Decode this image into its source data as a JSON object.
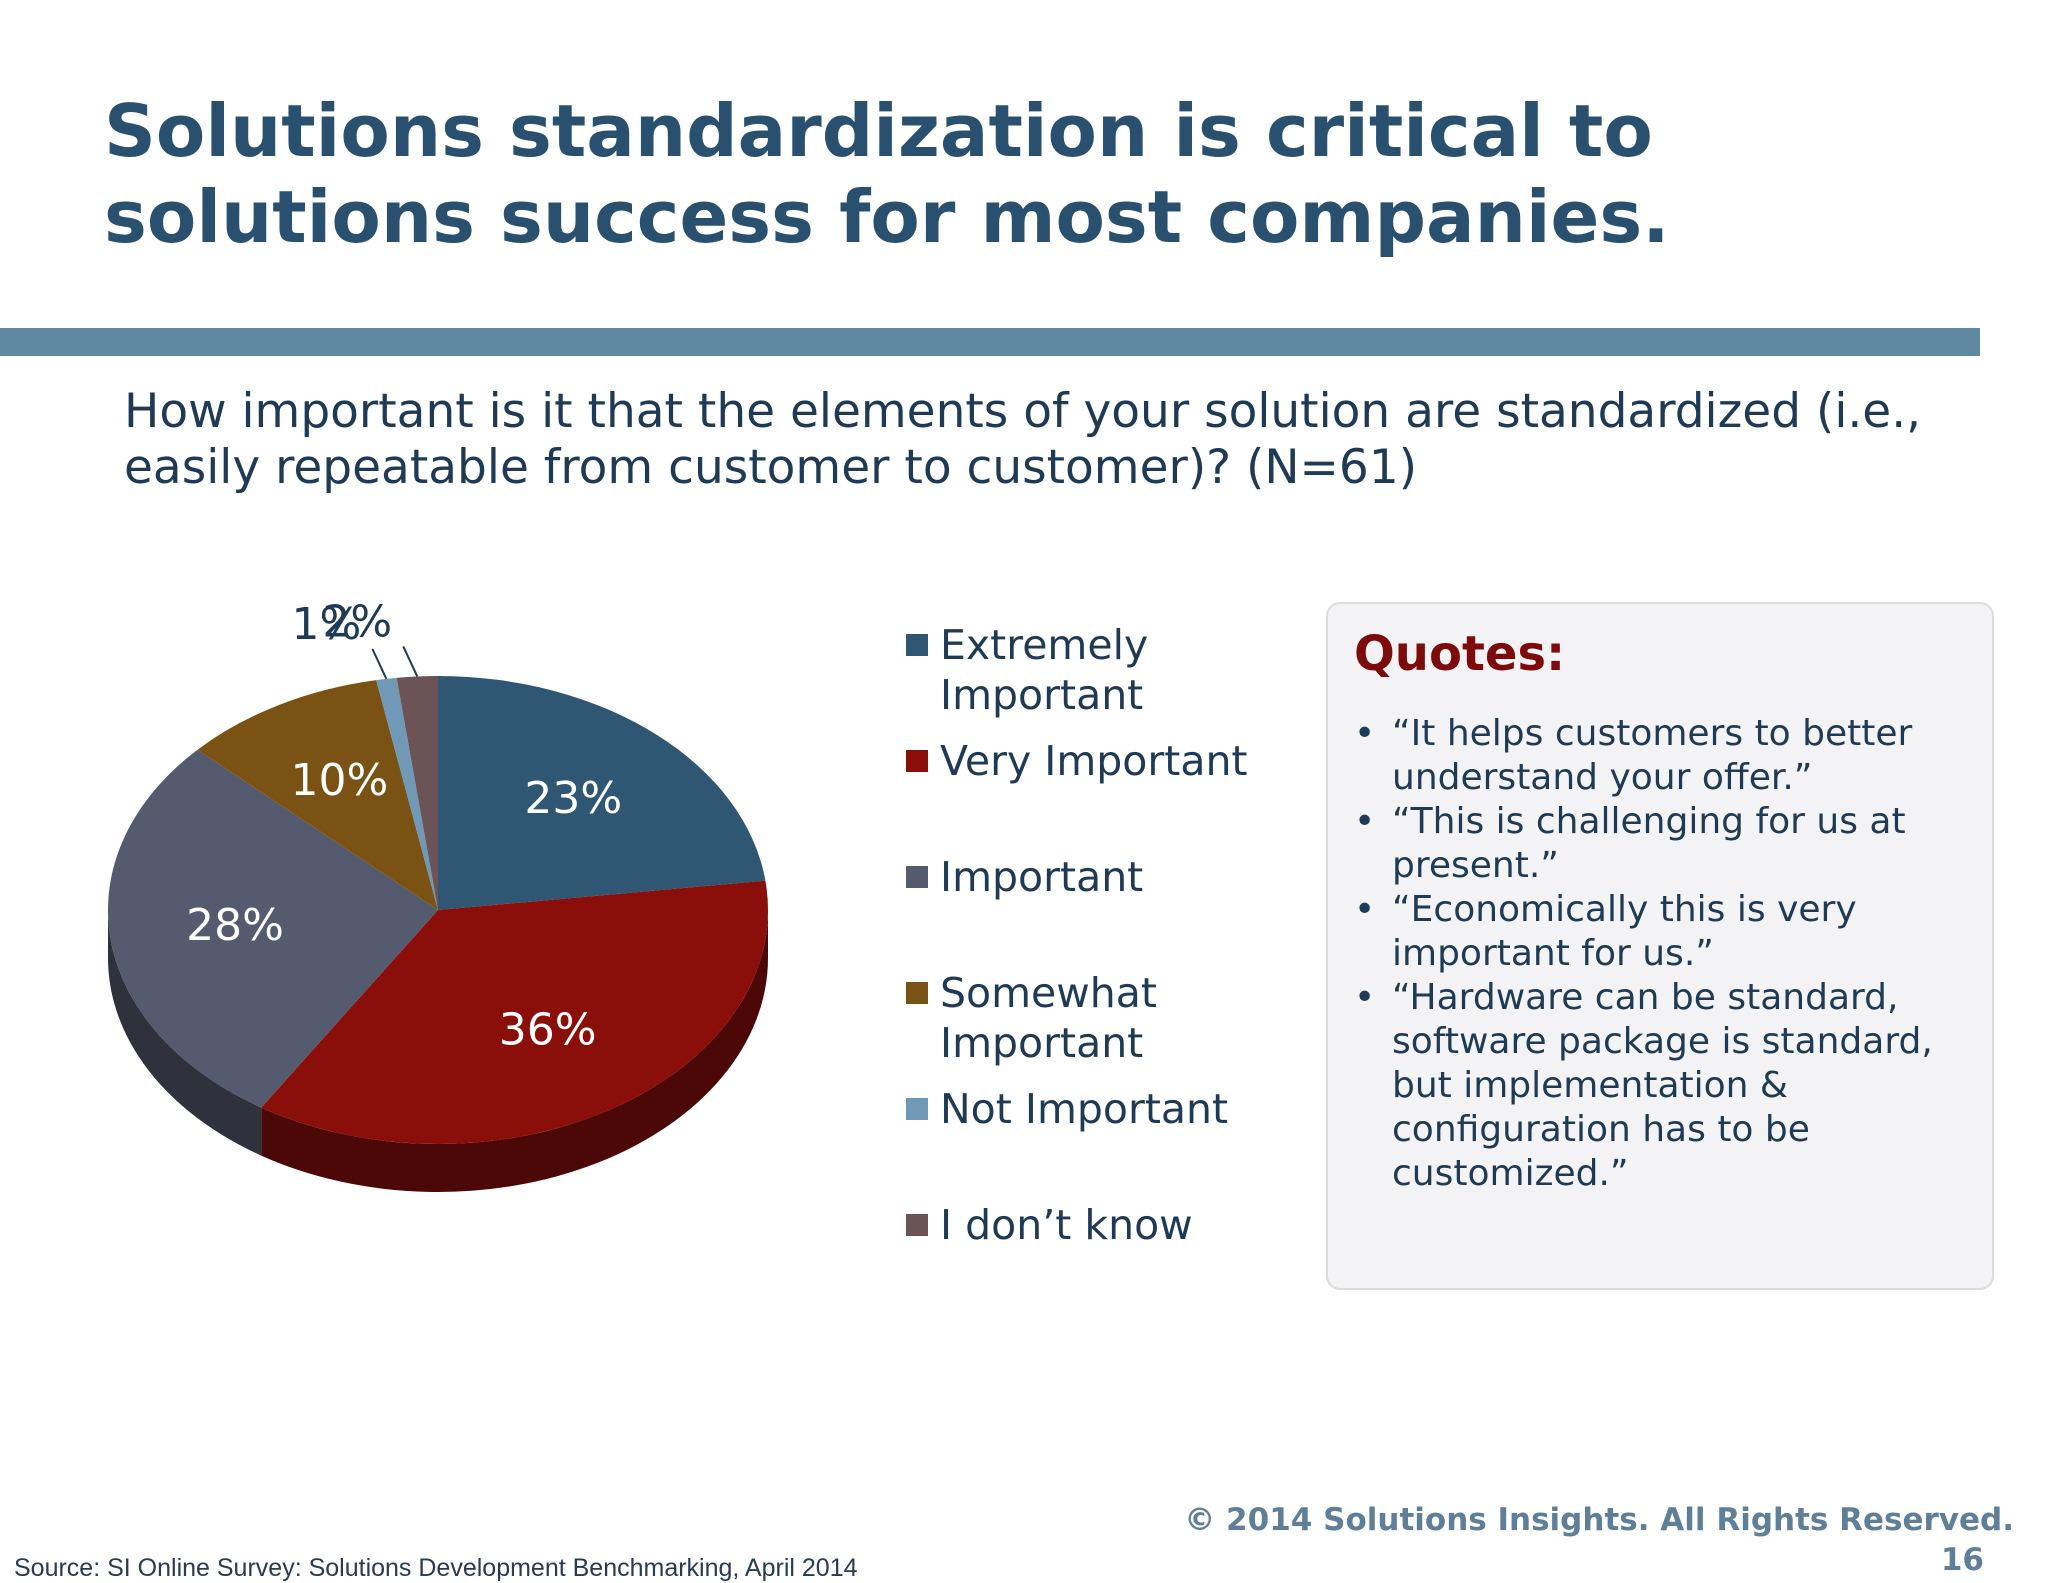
{
  "slide": {
    "title": "Solutions standardization is critical to\nsolutions success for most companies.",
    "question": "How important is it that the elements of your solution are standardized (i.e.,\neasily repeatable from customer to customer)?  (N=61)",
    "copyright": "© 2014 Solutions Insights. All Rights Reserved.",
    "page_number": "16",
    "source": "Source: SI Online Survey: Solutions Development Benchmarking, April 2014"
  },
  "quotes": {
    "title": "Quotes:",
    "items": [
      "“It helps customers to better understand your offer.”",
      "“This is challenging for us at present.”",
      "“Economically this is very important for us.”",
      "“Hardware can be standard, software package is standard, but implementation & configuration has to be customized.”"
    ]
  },
  "chart_data": {
    "type": "pie",
    "title": "",
    "legend_position": "right",
    "categories": [
      "Extremely\nImportant",
      "Very Important",
      "Important",
      "Somewhat\nImportant",
      "Not Important",
      "I don’t know"
    ],
    "values": [
      23,
      36,
      28,
      10,
      1,
      2
    ],
    "labels": [
      "23%",
      "36%",
      "28%",
      "10%",
      "1%",
      "2%"
    ],
    "colors": [
      "#2f5672",
      "#8a0f0a",
      "#555b6e",
      "#7a5213",
      "#6f99b6",
      "#6b5356"
    ]
  }
}
